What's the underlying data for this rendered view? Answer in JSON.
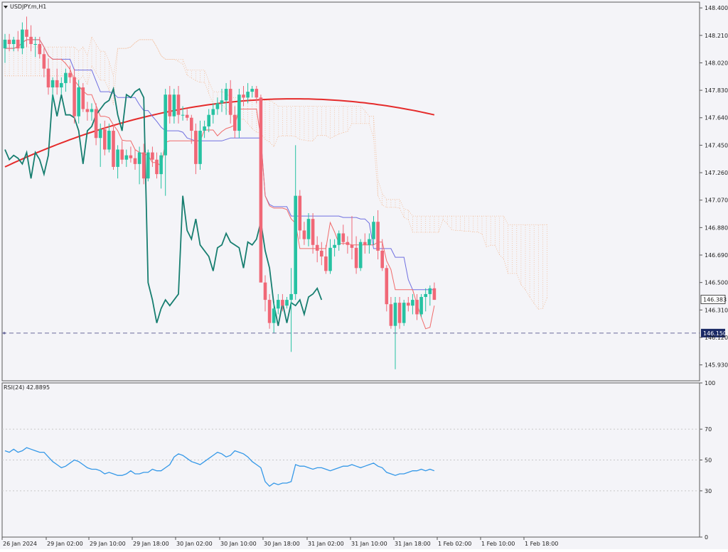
{
  "symbol_label": "USDJPY.m,H1",
  "rsi_label": "RSI(24) 42.8895",
  "colors": {
    "background": "#f4f4f8",
    "bull": "#26c2a2",
    "bear": "#f06877",
    "tenkan": "#f06a6a",
    "kijun": "#6f6fe0",
    "sma": "#e52b2b",
    "chikou": "#177e70",
    "cloud_span_a": "#f2b68f",
    "cloud_span_b": "#f2b68f",
    "rsi_line": "#3498e8",
    "support_line": "#6a6a9c"
  },
  "chart_data": [
    {
      "type": "candlestick",
      "title": "USDJPY.m,H1",
      "timeframe": "H1",
      "current_price": "146.383",
      "support_level": "146.150",
      "ylim": [
        145.82,
        148.44
      ],
      "y_ticks": [
        "148.400",
        "148.210",
        "148.020",
        "147.830",
        "147.640",
        "147.450",
        "147.260",
        "147.070",
        "146.880",
        "146.690",
        "146.500",
        "146.310",
        "146.120",
        "145.930"
      ],
      "x_tick_labels": [
        "26 Jan 2024",
        "29 Jan 02:00",
        "29 Jan 10:00",
        "29 Jan 18:00",
        "30 Jan 02:00",
        "30 Jan 10:00",
        "30 Jan 18:00",
        "31 Jan 02:00",
        "31 Jan 10:00",
        "31 Jan 18:00",
        "1 Feb 02:00",
        "1 Feb 10:00",
        "1 Feb 18:00"
      ],
      "candles_ohlc": [
        [
          148.12,
          148.22,
          148.02,
          148.18
        ],
        [
          148.18,
          148.22,
          148.1,
          148.15
        ],
        [
          148.15,
          148.2,
          148.1,
          148.18
        ],
        [
          148.18,
          148.24,
          148.1,
          148.12
        ],
        [
          148.12,
          148.3,
          148.08,
          148.25
        ],
        [
          148.25,
          148.34,
          148.13,
          148.2
        ],
        [
          148.2,
          148.28,
          148.1,
          148.15
        ],
        [
          148.15,
          148.2,
          148.06,
          148.15
        ],
        [
          148.15,
          148.2,
          148.05,
          148.08
        ],
        [
          148.08,
          148.12,
          147.92,
          147.98
        ],
        [
          147.98,
          148.05,
          147.8,
          147.85
        ],
        [
          147.85,
          147.92,
          147.75,
          147.9
        ],
        [
          147.9,
          147.98,
          147.8,
          147.85
        ],
        [
          147.85,
          147.92,
          147.8,
          147.88
        ],
        [
          147.88,
          147.98,
          147.82,
          147.95
        ],
        [
          147.95,
          148.0,
          147.88,
          147.92
        ],
        [
          147.92,
          147.98,
          147.6,
          147.65
        ],
        [
          147.65,
          147.9,
          147.6,
          147.85
        ],
        [
          147.85,
          147.88,
          147.68,
          147.7
        ],
        [
          147.7,
          147.75,
          147.62,
          147.68
        ],
        [
          147.68,
          147.74,
          147.62,
          147.7
        ],
        [
          147.7,
          147.74,
          147.45,
          147.5
        ],
        [
          147.5,
          147.6,
          147.3,
          147.56
        ],
        [
          147.56,
          147.62,
          147.38,
          147.42
        ],
        [
          147.42,
          147.6,
          147.4,
          147.55
        ],
        [
          147.55,
          147.58,
          147.28,
          147.3
        ],
        [
          147.3,
          147.45,
          147.22,
          147.42
        ],
        [
          147.42,
          147.48,
          147.32,
          147.35
        ],
        [
          147.35,
          147.42,
          147.3,
          147.38
        ],
        [
          147.38,
          147.44,
          147.33,
          147.36
        ],
        [
          147.36,
          147.42,
          147.28,
          147.32
        ],
        [
          147.32,
          147.44,
          147.18,
          147.4
        ],
        [
          147.4,
          147.46,
          147.18,
          147.22
        ],
        [
          147.22,
          147.42,
          147.2,
          147.4
        ],
        [
          147.4,
          147.44,
          147.3,
          147.35
        ],
        [
          147.35,
          147.4,
          147.22,
          147.25
        ],
        [
          147.25,
          147.4,
          147.15,
          147.38
        ],
        [
          147.38,
          147.84,
          147.1,
          147.8
        ],
        [
          147.8,
          147.86,
          147.6,
          147.65
        ],
        [
          147.65,
          147.84,
          147.6,
          147.8
        ],
        [
          147.8,
          147.86,
          147.6,
          147.66
        ],
        [
          147.66,
          147.72,
          147.62,
          147.66
        ],
        [
          147.66,
          147.7,
          147.62,
          147.64
        ],
        [
          147.64,
          147.66,
          147.46,
          147.55
        ],
        [
          147.55,
          147.6,
          147.25,
          147.32
        ],
        [
          147.32,
          147.62,
          147.28,
          147.55
        ],
        [
          147.55,
          147.62,
          147.5,
          147.58
        ],
        [
          147.58,
          147.7,
          147.54,
          147.66
        ],
        [
          147.66,
          147.74,
          147.6,
          147.7
        ],
        [
          147.7,
          147.78,
          147.66,
          147.74
        ],
        [
          147.74,
          147.84,
          147.68,
          147.76
        ],
        [
          147.76,
          147.88,
          147.66,
          147.84
        ],
        [
          147.84,
          147.9,
          147.6,
          147.66
        ],
        [
          147.66,
          147.72,
          147.5,
          147.55
        ],
        [
          147.55,
          147.84,
          147.5,
          147.8
        ],
        [
          147.8,
          147.86,
          147.72,
          147.78
        ],
        [
          147.78,
          147.88,
          147.74,
          147.82
        ],
        [
          147.82,
          147.86,
          147.78,
          147.84
        ],
        [
          147.84,
          147.86,
          147.74,
          147.78
        ],
        [
          147.78,
          147.8,
          147.1,
          146.5
        ],
        [
          146.5,
          146.55,
          146.3,
          146.38
        ],
        [
          146.38,
          146.42,
          146.18,
          146.22
        ],
        [
          146.22,
          146.36,
          146.15,
          146.32
        ],
        [
          146.32,
          146.42,
          146.28,
          146.38
        ],
        [
          146.38,
          146.42,
          146.3,
          146.34
        ],
        [
          146.34,
          146.4,
          146.32,
          146.38
        ],
        [
          146.38,
          146.6,
          146.02,
          146.42
        ],
        [
          146.42,
          147.45,
          146.38,
          147.1
        ],
        [
          147.1,
          147.14,
          146.8,
          146.86
        ],
        [
          146.86,
          146.92,
          146.76,
          146.8
        ],
        [
          146.8,
          146.98,
          146.75,
          146.94
        ],
        [
          146.94,
          146.98,
          146.7,
          146.76
        ],
        [
          146.76,
          146.82,
          146.64,
          146.72
        ],
        [
          146.72,
          146.78,
          146.62,
          146.68
        ],
        [
          146.68,
          146.76,
          146.56,
          146.58
        ],
        [
          146.58,
          146.8,
          146.56,
          146.74
        ],
        [
          146.74,
          146.8,
          146.68,
          146.76
        ],
        [
          146.76,
          146.86,
          146.72,
          146.84
        ],
        [
          146.84,
          146.9,
          146.76,
          146.78
        ],
        [
          146.78,
          146.82,
          146.7,
          146.76
        ],
        [
          146.76,
          146.96,
          146.66,
          146.74
        ],
        [
          146.74,
          146.82,
          146.56,
          146.6
        ],
        [
          146.6,
          146.8,
          146.58,
          146.78
        ],
        [
          146.78,
          146.84,
          146.7,
          146.76
        ],
        [
          146.76,
          146.84,
          146.7,
          146.8
        ],
        [
          146.8,
          146.96,
          146.76,
          146.92
        ],
        [
          146.92,
          147.0,
          146.66,
          146.72
        ],
        [
          146.72,
          146.8,
          146.58,
          146.6
        ],
        [
          146.6,
          146.62,
          146.3,
          146.35
        ],
        [
          146.35,
          146.4,
          146.18,
          146.2
        ],
        [
          146.2,
          146.4,
          145.9,
          146.36
        ],
        [
          146.36,
          146.4,
          146.18,
          146.22
        ],
        [
          146.22,
          146.38,
          146.2,
          146.36
        ],
        [
          146.36,
          146.4,
          146.3,
          146.34
        ],
        [
          146.34,
          146.42,
          146.28,
          146.38
        ],
        [
          146.38,
          146.42,
          146.24,
          146.28
        ],
        [
          146.28,
          146.42,
          146.26,
          146.4
        ],
        [
          146.4,
          146.46,
          146.3,
          146.42
        ],
        [
          146.42,
          146.48,
          146.34,
          146.46
        ],
        [
          146.46,
          146.5,
          146.38,
          146.38
        ]
      ],
      "sma_start_end": [
        147.3,
        147.66
      ],
      "sma_peak": 147.85,
      "rsi": {
        "ylim": [
          0,
          100
        ],
        "levels": [
          70,
          50,
          30
        ],
        "y_ticks": [
          "100",
          "70",
          "50",
          "30",
          "0"
        ],
        "last_value": 42.8895,
        "values": [
          56,
          55,
          57,
          55,
          56,
          58,
          57,
          56,
          55,
          55,
          52,
          49,
          47,
          45,
          46,
          48,
          50,
          49,
          47,
          45,
          44,
          44,
          43,
          41,
          42,
          41,
          40,
          40,
          41,
          43,
          41,
          41,
          42,
          42,
          44,
          43,
          43,
          45,
          47,
          52,
          54,
          53,
          51,
          49,
          48,
          47,
          49,
          51,
          53,
          55,
          54,
          52,
          53,
          56,
          55,
          54,
          52,
          49,
          47,
          45,
          36,
          33,
          35,
          34,
          35,
          35,
          36,
          47,
          46,
          46,
          45,
          44,
          45,
          45,
          44,
          43,
          44,
          45,
          46,
          46,
          47,
          46,
          45,
          46,
          47,
          48,
          46,
          45,
          42,
          41,
          40,
          41,
          41,
          42,
          43,
          43,
          44,
          43,
          44,
          43
        ]
      }
    }
  ]
}
